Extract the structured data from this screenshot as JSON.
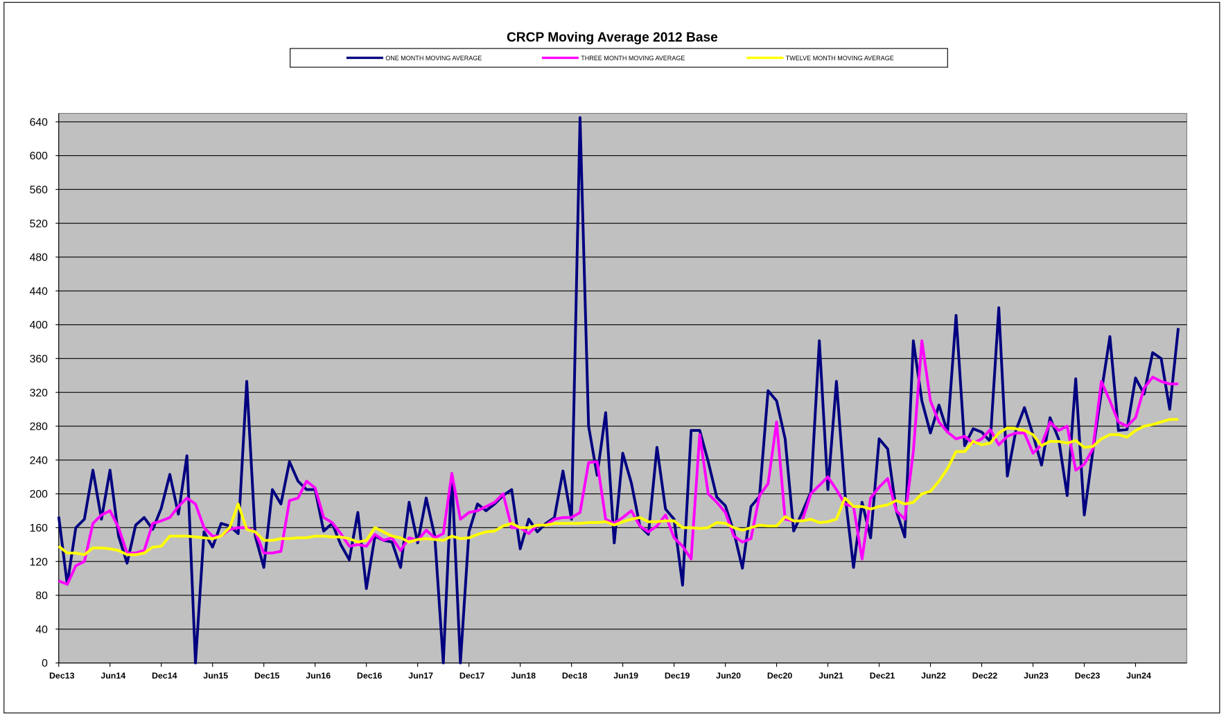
{
  "chart_data": {
    "type": "line",
    "title": "CRCP Moving Average 2012 Base",
    "categories": [
      "Dec13",
      null,
      null,
      null,
      null,
      null,
      "Jun14",
      null,
      null,
      null,
      null,
      null,
      "Dec14",
      null,
      null,
      null,
      null,
      null,
      "Jun15",
      null,
      null,
      null,
      null,
      null,
      "Dec15",
      null,
      null,
      null,
      null,
      null,
      "Jun16",
      null,
      null,
      null,
      null,
      null,
      "Dec16",
      null,
      null,
      null,
      null,
      null,
      "Jun17",
      null,
      null,
      null,
      null,
      null,
      "Dec17",
      null,
      null,
      null,
      null,
      null,
      "Jun18",
      null,
      null,
      null,
      null,
      null,
      "Dec18",
      null,
      null,
      null,
      null,
      null,
      "Jun19",
      null,
      null,
      null,
      null,
      null,
      "Dec19",
      null,
      null,
      null,
      null,
      null,
      "Jun20",
      null,
      null,
      null,
      null,
      null,
      "Dec20",
      null,
      null,
      null,
      null,
      null,
      "Jun21",
      null,
      null,
      null,
      null,
      null,
      "Dec21",
      null,
      null,
      null,
      null,
      null,
      "Jun22",
      null,
      null,
      null,
      null,
      null,
      "Dec22",
      null,
      null,
      null,
      null,
      null,
      "Jun23",
      null,
      null,
      null,
      null,
      null,
      "Dec23",
      null,
      null,
      null,
      null,
      null,
      "Jun24",
      null,
      null,
      null,
      null,
      null
    ],
    "series": [
      {
        "name": "ONE MONTH MOVING AVERAGE",
        "color": "#000080",
        "values": [
          173,
          93,
          160,
          170,
          228,
          170,
          228,
          150,
          118,
          163,
          172,
          158,
          183,
          223,
          176,
          245,
          0,
          155,
          137,
          165,
          162,
          153,
          333,
          150,
          113,
          205,
          188,
          238,
          215,
          205,
          205,
          156,
          165,
          140,
          122,
          178,
          88,
          150,
          145,
          143,
          113,
          190,
          142,
          195,
          150,
          0,
          224,
          0,
          155,
          188,
          180,
          188,
          198,
          205,
          135,
          170,
          155,
          165,
          172,
          227,
          170,
          645,
          280,
          222,
          296,
          142,
          248,
          213,
          162,
          152,
          255,
          182,
          170,
          92,
          275,
          275,
          238,
          196,
          186,
          155,
          112,
          185,
          197,
          322,
          310,
          265,
          156,
          178,
          202,
          381,
          205,
          333,
          200,
          113,
          190,
          148,
          265,
          253,
          180,
          149,
          381,
          310,
          272,
          305,
          273,
          411,
          257,
          277,
          273,
          262,
          420,
          221,
          275,
          302,
          270,
          234,
          290,
          265,
          198,
          336,
          175,
          250,
          320,
          386,
          275,
          276,
          337,
          318,
          367,
          360,
          300,
          396
        ]
      },
      {
        "name": "THREE MONTH MOVING AVERAGE",
        "color": "#ff00ff",
        "values": [
          97,
          93,
          115,
          120,
          165,
          175,
          180,
          160,
          130,
          130,
          133,
          165,
          168,
          172,
          185,
          195,
          188,
          160,
          150,
          150,
          158,
          160,
          160,
          155,
          130,
          130,
          132,
          192,
          195,
          215,
          207,
          172,
          166,
          153,
          138,
          140,
          138,
          152,
          145,
          148,
          133,
          148,
          145,
          157,
          148,
          153,
          224,
          170,
          178,
          180,
          185,
          190,
          200,
          160,
          160,
          153,
          163,
          163,
          170,
          172,
          172,
          178,
          237,
          238,
          170,
          165,
          172,
          180,
          162,
          155,
          162,
          175,
          148,
          138,
          123,
          270,
          200,
          190,
          178,
          150,
          143,
          147,
          198,
          212,
          285,
          170,
          168,
          168,
          200,
          210,
          220,
          205,
          188,
          185,
          123,
          195,
          208,
          218,
          180,
          170,
          250,
          381,
          310,
          285,
          273,
          265,
          268,
          260,
          265,
          276,
          258,
          268,
          272,
          272,
          248,
          258,
          285,
          275,
          280,
          228,
          235,
          253,
          333,
          310,
          285,
          280,
          290,
          325,
          338,
          333,
          330,
          330
        ]
      },
      {
        "name": "TWELVE MONTH MOVING AVERAGE",
        "color": "#ffff00",
        "values": [
          138,
          130,
          130,
          128,
          136,
          136,
          135,
          133,
          128,
          128,
          130,
          137,
          138,
          150,
          150,
          150,
          149,
          148,
          147,
          150,
          160,
          188,
          158,
          155,
          145,
          145,
          147,
          147,
          148,
          148,
          150,
          150,
          149,
          149,
          147,
          143,
          145,
          160,
          155,
          150,
          148,
          143,
          146,
          147,
          146,
          145,
          150,
          147,
          148,
          152,
          155,
          156,
          162,
          165,
          160,
          160,
          163,
          163,
          165,
          165,
          165,
          165,
          166,
          166,
          167,
          163,
          167,
          170,
          172,
          167,
          167,
          168,
          168,
          160,
          160,
          159,
          160,
          166,
          165,
          160,
          157,
          160,
          163,
          162,
          162,
          173,
          168,
          168,
          170,
          166,
          167,
          170,
          195,
          185,
          185,
          182,
          185,
          187,
          192,
          188,
          190,
          200,
          203,
          215,
          230,
          250,
          250,
          262,
          258,
          260,
          272,
          278,
          277,
          275,
          270,
          257,
          262,
          262,
          260,
          263,
          255,
          256,
          265,
          270,
          270,
          267,
          275,
          280,
          282,
          285,
          288,
          288
        ]
      }
    ],
    "ylim": [
      0,
      650
    ],
    "yticks": [
      0,
      40,
      80,
      120,
      160,
      200,
      240,
      280,
      320,
      360,
      400,
      440,
      480,
      520,
      560,
      600,
      640
    ],
    "grid": true,
    "legend": "top"
  }
}
